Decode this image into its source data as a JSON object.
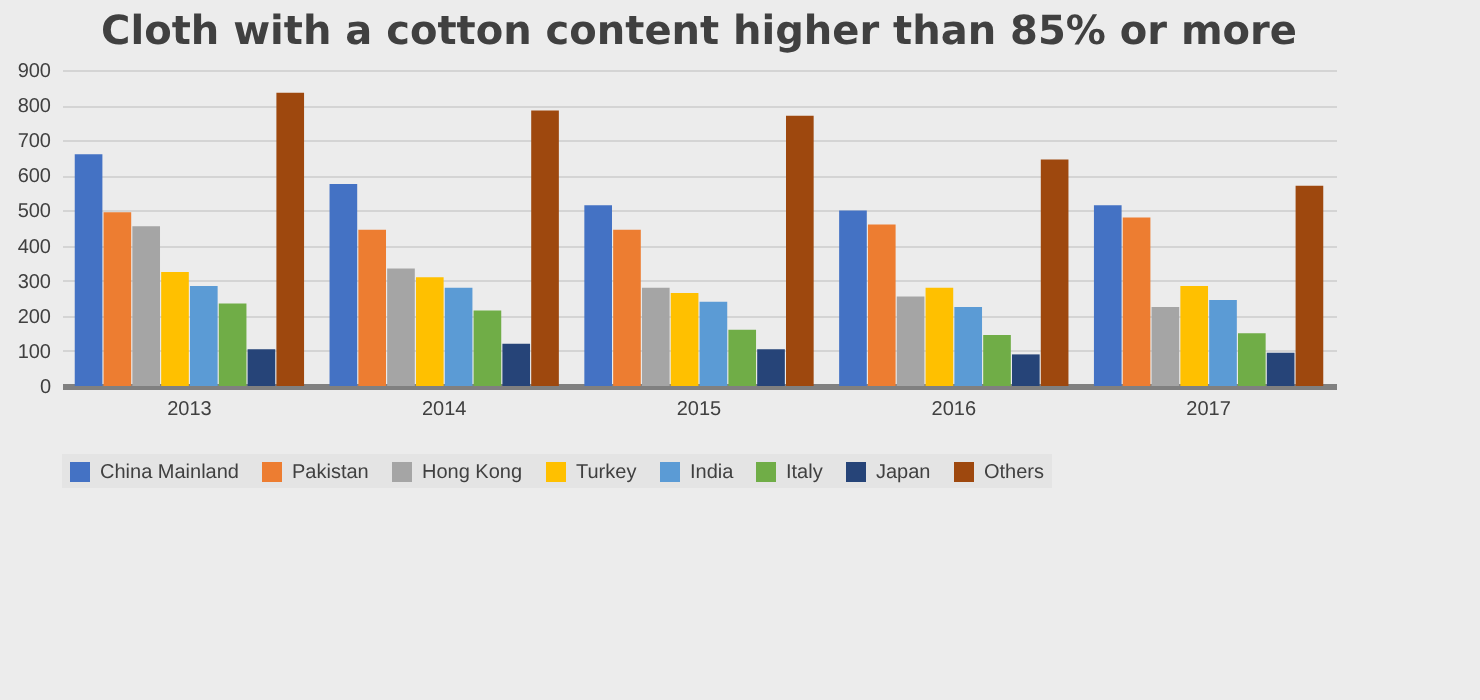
{
  "chart_data": {
    "type": "bar",
    "title": "Cloth with a cotton content higher than 85% or more",
    "categories": [
      "2013",
      "2014",
      "2015",
      "2016",
      "2017"
    ],
    "series": [
      {
        "name": "China Mainland",
        "color": "#4472c4",
        "values": [
          660,
          575,
          515,
          500,
          515
        ]
      },
      {
        "name": "Pakistan",
        "color": "#ed7d31",
        "values": [
          495,
          445,
          445,
          460,
          480
        ]
      },
      {
        "name": "Hong Kong",
        "color": "#a5a5a5",
        "values": [
          455,
          335,
          280,
          255,
          225
        ]
      },
      {
        "name": "Turkey",
        "color": "#ffc000",
        "values": [
          325,
          310,
          265,
          280,
          285
        ]
      },
      {
        "name": "India",
        "color": "#5b9bd5",
        "values": [
          285,
          280,
          240,
          225,
          245
        ]
      },
      {
        "name": "Italy",
        "color": "#70ad47",
        "values": [
          235,
          215,
          160,
          145,
          150
        ]
      },
      {
        "name": "Japan",
        "color": "#264478",
        "values": [
          105,
          120,
          105,
          90,
          95
        ]
      },
      {
        "name": "Others",
        "color": "#9e480e",
        "values": [
          835,
          785,
          770,
          645,
          570
        ]
      }
    ],
    "ylim": [
      0,
      900
    ],
    "yticks": [
      0,
      100,
      200,
      300,
      400,
      500,
      600,
      700,
      800,
      900
    ],
    "grid": "y",
    "legend": "bottom"
  }
}
